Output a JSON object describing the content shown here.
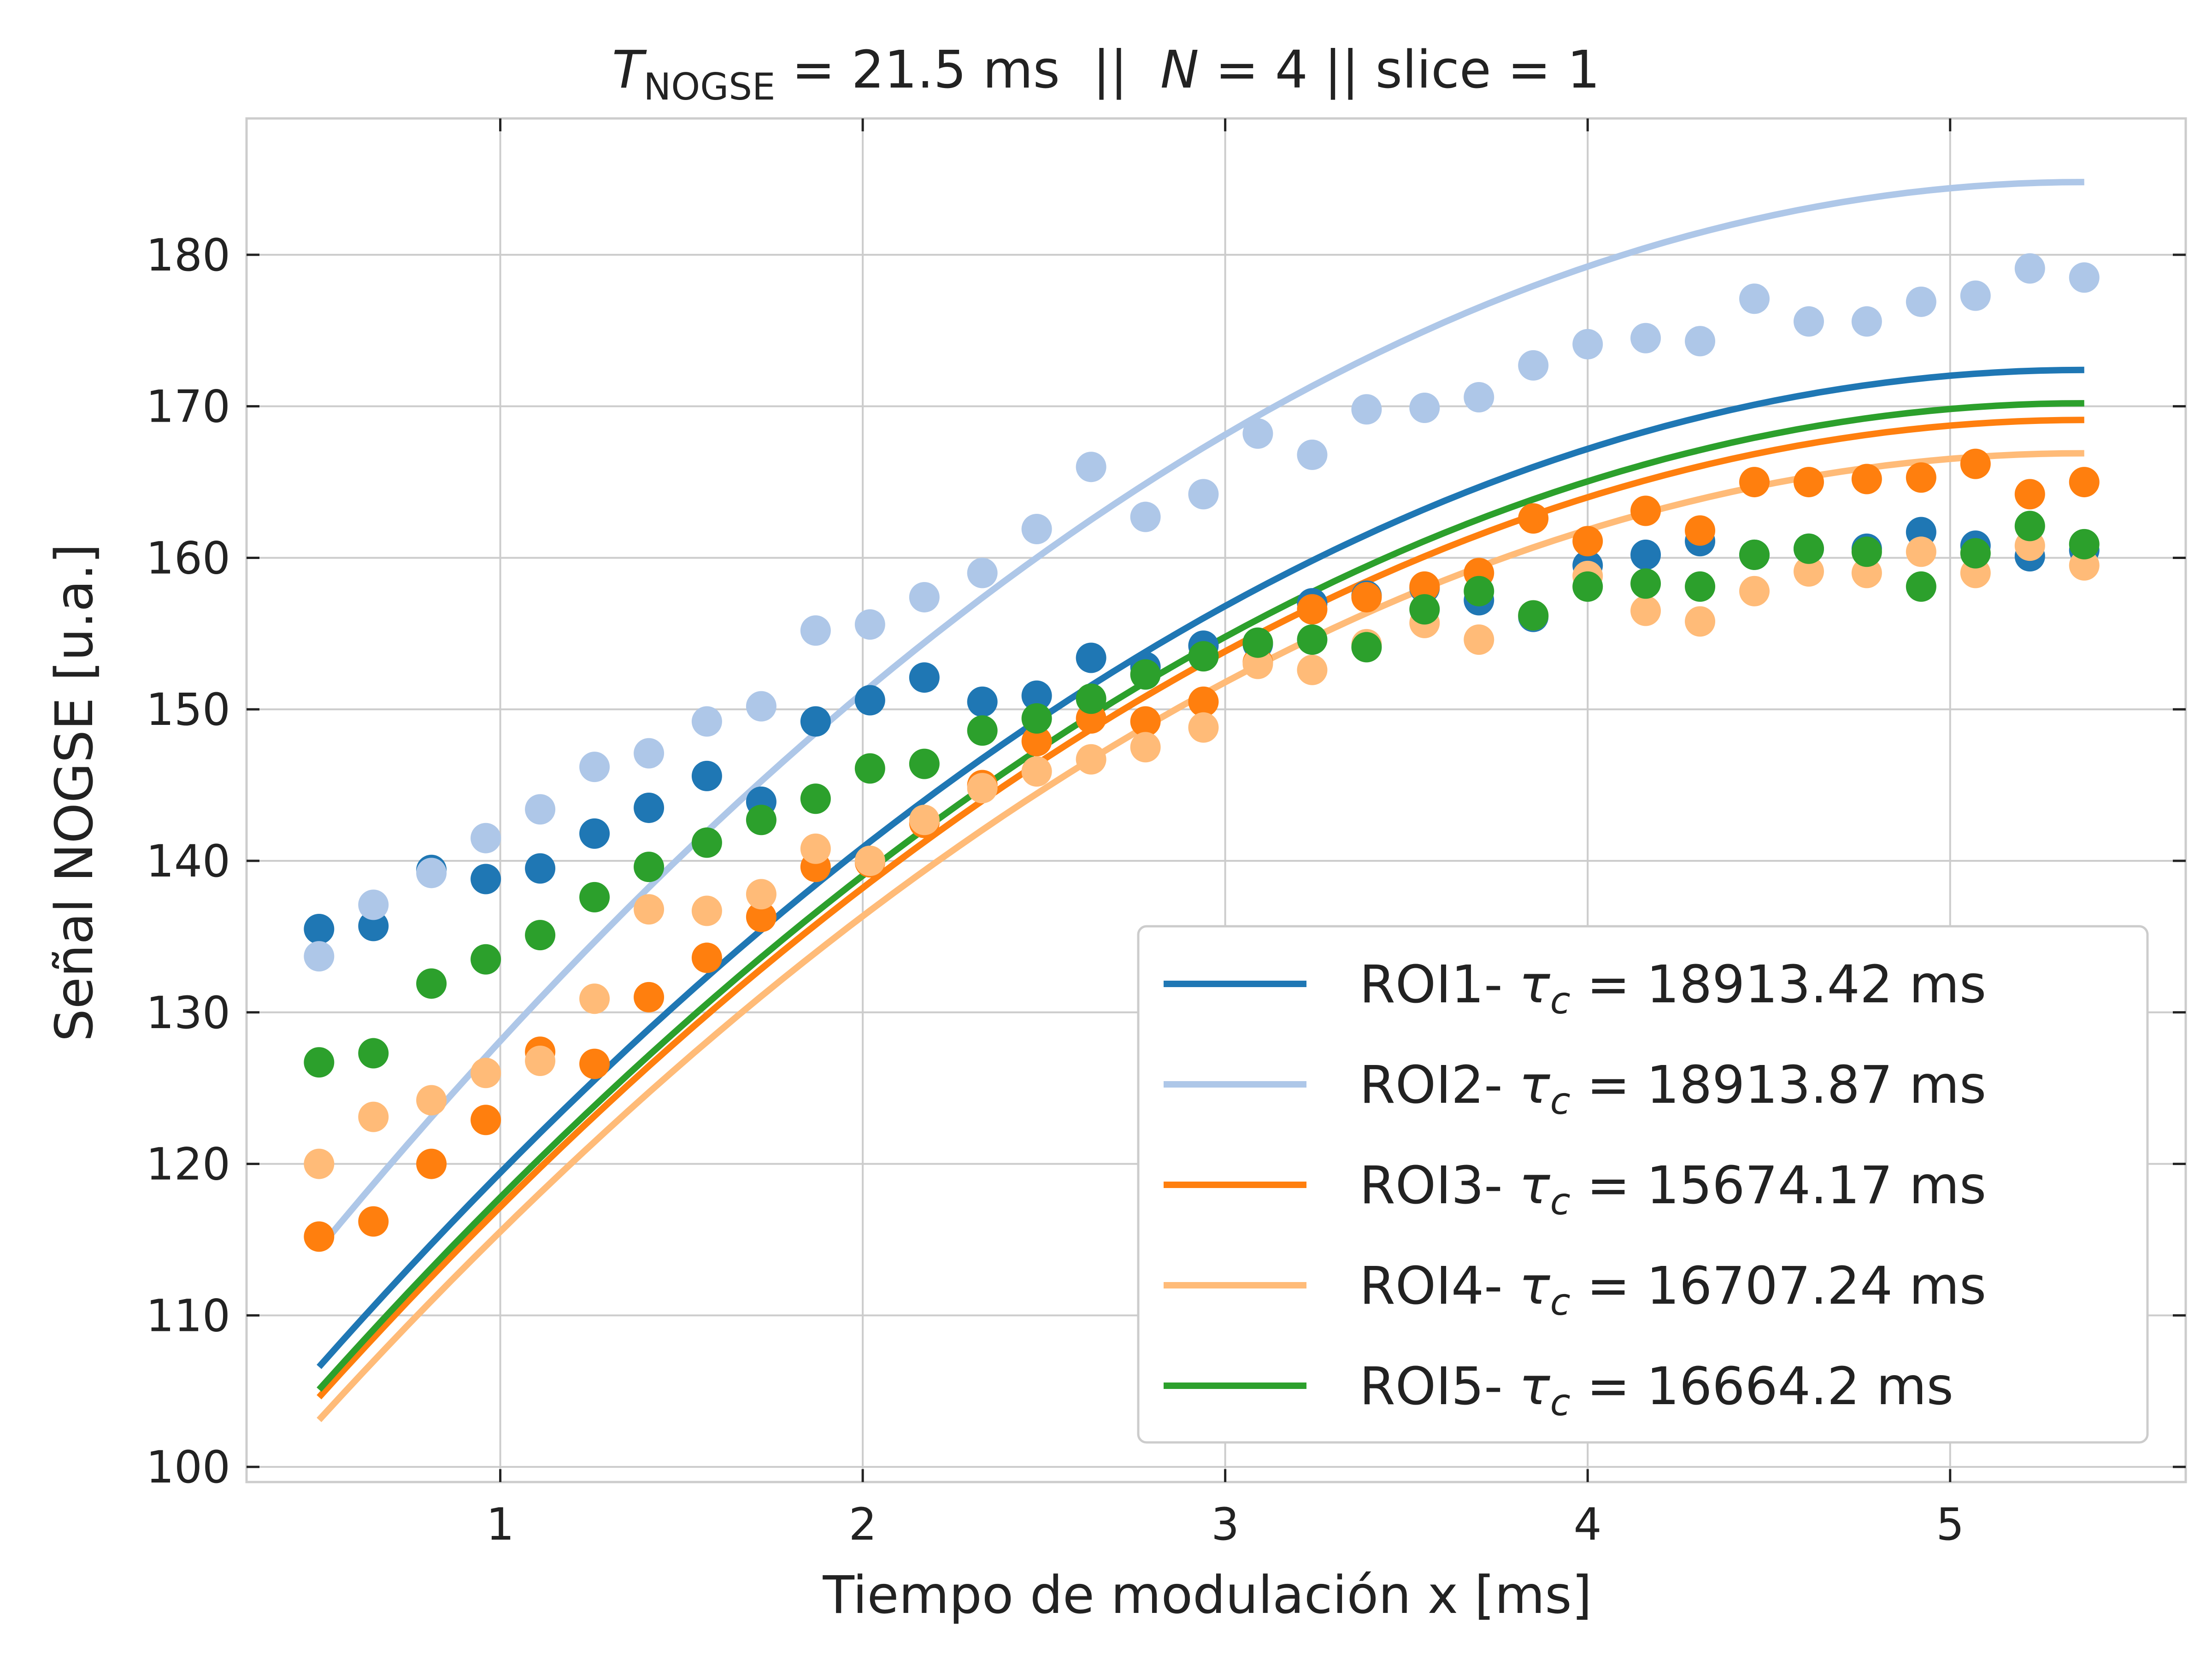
{
  "chart_data": {
    "type": "scatter",
    "title_parts": {
      "t_symbol": "T",
      "t_subscript": "NOGSE",
      "t_value": " = 21.5 ms  ||  ",
      "n_symbol": "N",
      "rest": " = 4 || slice = 1"
    },
    "xlabel": "Tiempo de modulación x [ms]",
    "ylabel": "Señal NOGSE [u.a.]",
    "xlim": [
      0.3,
      5.65
    ],
    "ylim": [
      99,
      189
    ],
    "xticks": [
      1,
      2,
      3,
      4,
      5
    ],
    "yticks": [
      100,
      110,
      120,
      130,
      140,
      150,
      160,
      170,
      180
    ],
    "grid": true,
    "legend_position": "lower-right",
    "x": [
      0.5,
      0.65,
      0.81,
      0.96,
      1.11,
      1.26,
      1.41,
      1.57,
      1.72,
      1.87,
      2.02,
      2.17,
      2.33,
      2.48,
      2.63,
      2.78,
      2.94,
      3.09,
      3.24,
      3.39,
      3.55,
      3.7,
      3.85,
      4.0,
      4.16,
      4.31,
      4.46,
      4.61,
      4.77,
      4.92,
      5.07,
      5.22,
      5.37
    ],
    "series": [
      {
        "name": "ROI1",
        "color": "#1f77b4",
        "tau_prefix": "ROI1- ",
        "tau_symbol": "τ",
        "tau_sub": "c",
        "tau_value": " = 18913.42 ms",
        "points": [
          135.5,
          135.7,
          139.4,
          138.8,
          139.5,
          141.8,
          143.5,
          145.6,
          143.9,
          149.2,
          150.6,
          152.1,
          150.5,
          150.9,
          153.4,
          152.8,
          154.2,
          154.3,
          157.0,
          157.5,
          158.0,
          157.2,
          156.1,
          159.5,
          160.2,
          161.1,
          160.2,
          160.6,
          160.6,
          161.7,
          160.8,
          160.1,
          160.5
        ],
        "fit": {
          "ymax": 172.4,
          "y0": 106.6,
          "x0": 0.5,
          "xend": 5.37
        }
      },
      {
        "name": "ROI2",
        "color": "#aec7e8",
        "tau_prefix": "ROI2- ",
        "tau_symbol": "τ",
        "tau_sub": "c",
        "tau_value": " = 18913.87 ms",
        "points": [
          133.7,
          137.1,
          139.2,
          141.5,
          143.4,
          146.2,
          147.1,
          149.2,
          150.2,
          155.2,
          155.6,
          157.4,
          159.0,
          161.9,
          166.0,
          162.7,
          164.2,
          168.2,
          166.8,
          169.8,
          169.9,
          170.6,
          172.7,
          174.1,
          174.5,
          174.3,
          177.1,
          175.6,
          175.6,
          176.9,
          177.3,
          179.1,
          178.5
        ],
        "fit": {
          "ymax": 184.8,
          "y0": 114.4,
          "x0": 0.5,
          "xend": 5.37
        }
      },
      {
        "name": "ROI3",
        "color": "#ff7f0e",
        "tau_prefix": "ROI3- ",
        "tau_symbol": "τ",
        "tau_sub": "c",
        "tau_value": " = 15674.17 ms",
        "points": [
          115.2,
          116.2,
          120.0,
          122.9,
          127.4,
          126.6,
          131.0,
          133.6,
          136.3,
          139.6,
          139.9,
          142.5,
          145.0,
          147.9,
          149.4,
          149.2,
          150.5,
          153.1,
          156.6,
          157.4,
          158.1,
          159.0,
          162.6,
          161.1,
          163.1,
          161.8,
          165.0,
          165.0,
          165.2,
          165.3,
          166.2,
          164.2,
          165.0
        ],
        "fit": {
          "ymax": 169.1,
          "y0": 104.6,
          "x0": 0.5,
          "xend": 5.37
        }
      },
      {
        "name": "ROI4",
        "color": "#ffbb78",
        "tau_prefix": "ROI4- ",
        "tau_symbol": "τ",
        "tau_sub": "c",
        "tau_value": " = 16707.24 ms",
        "points": [
          120.0,
          123.1,
          124.2,
          126.0,
          126.8,
          130.9,
          136.8,
          136.7,
          137.8,
          140.8,
          140.0,
          142.7,
          144.8,
          145.9,
          146.7,
          147.5,
          148.8,
          153.0,
          152.6,
          154.3,
          155.7,
          154.6,
          156.2,
          158.8,
          156.5,
          155.8,
          157.8,
          159.1,
          159.0,
          160.4,
          159.0,
          160.8,
          159.5
        ],
        "fit": {
          "ymax": 166.9,
          "y0": 103.1,
          "x0": 0.5,
          "xend": 5.37
        }
      },
      {
        "name": "ROI5",
        "color": "#2ca02c",
        "tau_prefix": "ROI5- ",
        "tau_symbol": "τ",
        "tau_sub": "c",
        "tau_value": " = 16664.2 ms",
        "points": [
          126.7,
          127.3,
          131.9,
          133.5,
          135.1,
          137.6,
          139.6,
          141.2,
          142.7,
          144.1,
          146.1,
          146.4,
          148.6,
          149.4,
          150.7,
          152.3,
          153.5,
          154.4,
          154.6,
          154.1,
          156.6,
          157.8,
          156.2,
          158.1,
          158.3,
          158.1,
          160.2,
          160.6,
          160.4,
          158.1,
          160.3,
          162.1,
          160.9
        ],
        "fit": {
          "ymax": 170.2,
          "y0": 105.1,
          "x0": 0.5,
          "xend": 5.37
        }
      }
    ]
  }
}
